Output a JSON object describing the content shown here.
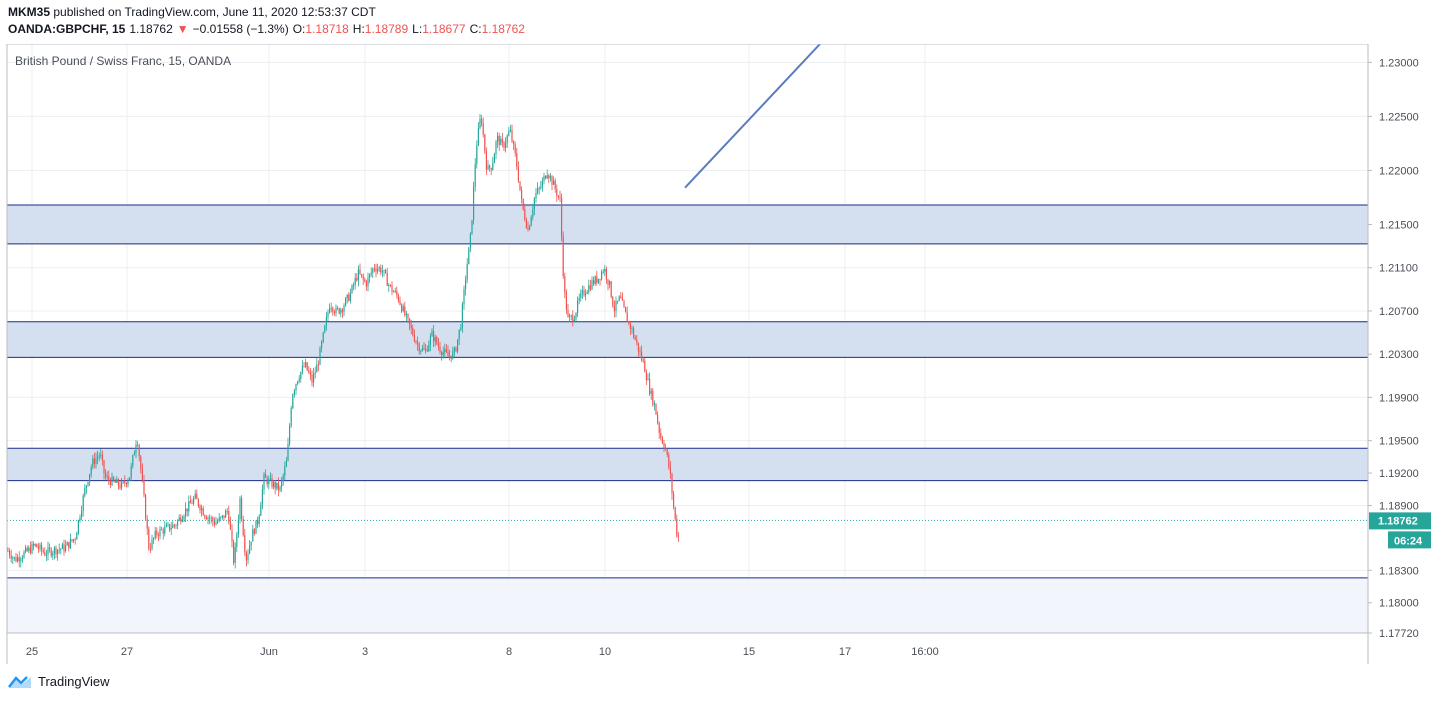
{
  "header": {
    "published_line": "MKM35 published on TradingView.com, June 11, 2020 12:53:37 CDT",
    "published_user": "MKM35",
    "published_rest": " published on TradingView.com, June 11, 2020 12:53:37 CDT",
    "symbol_line": {
      "symbol": "OANDA:GBPCHF, 15",
      "last": "1.18762",
      "arrow": "▼",
      "change": "−0.01558 (−1.3%)",
      "o_label": "O:",
      "o_value": "1.18718",
      "h_label": "H:",
      "h_value": "1.18789",
      "l_label": "L:",
      "l_value": "1.18677",
      "c_label": "C:",
      "c_value": "1.18762"
    }
  },
  "chart_data": {
    "type": "candlestick",
    "title": "British Pound / Swiss Franc, 15, OANDA",
    "ylim": [
      1.1772,
      1.2317
    ],
    "y_ticks": [
      "1.23000",
      "1.22500",
      "1.22000",
      "1.21500",
      "1.21100",
      "1.20700",
      "1.20300",
      "1.19900",
      "1.19500",
      "1.19200",
      "1.18900",
      "1.18300",
      "1.18000",
      "1.17720"
    ],
    "x_ticks": [
      "25",
      "27",
      "Jun",
      "3",
      "8",
      "10",
      "15",
      "17",
      "16:00"
    ],
    "last_price": "1.18762",
    "countdown": "06:24",
    "zones": [
      {
        "low": 1.2132,
        "high": 1.2168
      },
      {
        "low": 1.2027,
        "high": 1.206
      },
      {
        "low": 1.1913,
        "high": 1.1943
      },
      {
        "low": 1.1772,
        "high": 1.1823
      }
    ],
    "trendline": {
      "from": [
        685,
        1.2184
      ],
      "to": [
        820,
        1.2317
      ]
    },
    "series_path": [
      [
        8,
        1.1848
      ],
      [
        15,
        1.184
      ],
      [
        25,
        1.1846
      ],
      [
        35,
        1.1853
      ],
      [
        45,
        1.1846
      ],
      [
        55,
        1.1849
      ],
      [
        65,
        1.1851
      ],
      [
        75,
        1.186
      ],
      [
        85,
        1.1905
      ],
      [
        92,
        1.1929
      ],
      [
        100,
        1.1938
      ],
      [
        105,
        1.1916
      ],
      [
        112,
        1.1912
      ],
      [
        122,
        1.1908
      ],
      [
        130,
        1.1918
      ],
      [
        137,
        1.1955
      ],
      [
        143,
        1.1905
      ],
      [
        149,
        1.185
      ],
      [
        156,
        1.1864
      ],
      [
        165,
        1.1868
      ],
      [
        175,
        1.1872
      ],
      [
        185,
        1.1885
      ],
      [
        195,
        1.1897
      ],
      [
        205,
        1.1882
      ],
      [
        215,
        1.1874
      ],
      [
        222,
        1.1878
      ],
      [
        228,
        1.1886
      ],
      [
        234,
        1.1836
      ],
      [
        240,
        1.1896
      ],
      [
        246,
        1.184
      ],
      [
        252,
        1.1863
      ],
      [
        258,
        1.1876
      ],
      [
        264,
        1.1915
      ],
      [
        272,
        1.191
      ],
      [
        280,
        1.1905
      ],
      [
        287,
        1.1932
      ],
      [
        292,
        1.1993
      ],
      [
        298,
        1.2009
      ],
      [
        305,
        1.202
      ],
      [
        312,
        1.2005
      ],
      [
        318,
        1.2022
      ],
      [
        324,
        1.205
      ],
      [
        330,
        1.2078
      ],
      [
        336,
        1.2069
      ],
      [
        342,
        1.2073
      ],
      [
        350,
        1.2085
      ],
      [
        358,
        1.2105
      ],
      [
        366,
        1.2095
      ],
      [
        374,
        1.2111
      ],
      [
        382,
        1.2108
      ],
      [
        390,
        1.2092
      ],
      [
        398,
        1.2083
      ],
      [
        404,
        1.2068
      ],
      [
        410,
        1.2055
      ],
      [
        418,
        1.2038
      ],
      [
        425,
        1.2032
      ],
      [
        432,
        1.2048
      ],
      [
        440,
        1.2035
      ],
      [
        448,
        1.2028
      ],
      [
        455,
        1.2032
      ],
      [
        461,
        1.2059
      ],
      [
        466,
        1.2105
      ],
      [
        471,
        1.2142
      ],
      [
        476,
        1.222
      ],
      [
        481,
        1.2252
      ],
      [
        487,
        1.22
      ],
      [
        492,
        1.2205
      ],
      [
        497,
        1.223
      ],
      [
        503,
        1.2222
      ],
      [
        510,
        1.2237
      ],
      [
        516,
        1.221
      ],
      [
        522,
        1.2168
      ],
      [
        528,
        1.2145
      ],
      [
        535,
        1.2177
      ],
      [
        541,
        1.2185
      ],
      [
        547,
        1.22
      ],
      [
        553,
        1.2188
      ],
      [
        560,
        1.2172
      ],
      [
        564,
        1.209
      ],
      [
        568,
        1.2062
      ],
      [
        574,
        1.2065
      ],
      [
        580,
        1.2082
      ],
      [
        586,
        1.209
      ],
      [
        592,
        1.2096
      ],
      [
        598,
        1.21
      ],
      [
        604,
        1.211
      ],
      [
        610,
        1.2092
      ],
      [
        614,
        1.2071
      ],
      [
        620,
        1.2082
      ],
      [
        626,
        1.2065
      ],
      [
        632,
        1.2052
      ],
      [
        638,
        1.2036
      ],
      [
        644,
        1.202
      ],
      [
        650,
        1.1996
      ],
      [
        655,
        1.1981
      ],
      [
        660,
        1.1955
      ],
      [
        665,
        1.1945
      ],
      [
        670,
        1.192
      ],
      [
        674,
        1.1885
      ],
      [
        678,
        1.1857
      ],
      [
        680,
        1.1876
      ]
    ]
  },
  "footer": {
    "brand": "TradingView"
  },
  "colors": {
    "up": "#26a69a",
    "down": "#ef5350",
    "zone_fill": "#d4dff0",
    "zone_line": "#1a2b8c",
    "zone_light": "#f2f5fb",
    "trendline": "#5b7cc0",
    "grid": "#eceff3",
    "axis": "#8a8f98"
  }
}
